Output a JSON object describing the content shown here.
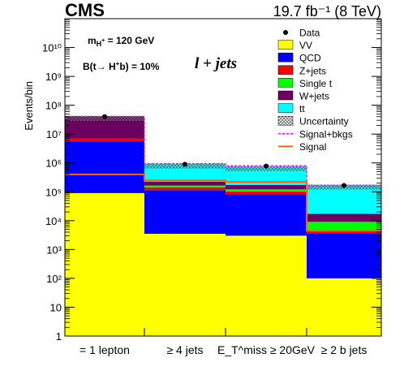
{
  "chart_data": {
    "type": "bar",
    "stacked": true,
    "log_y": true,
    "ylabel": "Events/bin",
    "ylim": [
      1,
      100000000000.0
    ],
    "yticks": [
      "1",
      "10",
      "10²",
      "10³",
      "10⁴",
      "10⁵",
      "10⁶",
      "10⁷",
      "10⁸",
      "10⁹",
      "10¹⁰"
    ],
    "categories": [
      "= 1 lepton",
      "≥ 4 jets",
      "E_T^miss ≥ 20GeV",
      "≥ 2 b jets"
    ],
    "series": [
      {
        "name": "VV",
        "color": "#ffff00",
        "values": [
          90000,
          3500,
          3000,
          100
        ]
      },
      {
        "name": "QCD",
        "color": "#0000ff",
        "values": [
          5500000,
          110000,
          80000,
          3500
        ]
      },
      {
        "name": "Z+jets",
        "color": "#ff0000",
        "values": [
          1500000,
          30000,
          20000,
          800
        ]
      },
      {
        "name": "Single t",
        "color": "#00ff00",
        "values": [
          0,
          22000,
          18000,
          4700
        ]
      },
      {
        "name": "W+jets",
        "color": "#6b005e",
        "values": [
          35000000,
          60000,
          50000,
          8000
        ]
      },
      {
        "name": "tt",
        "color": "#00ffff",
        "values": [
          0,
          720000,
          600000,
          160000
        ]
      }
    ],
    "data_points": [
      40000000,
      900000,
      780000,
      165000
    ],
    "signal": [
      400000,
      250000,
      220000,
      4500
    ],
    "signal_plus_bkg": [
      41000000,
      950000,
      800000,
      160000
    ],
    "legend": {
      "position": "top-right",
      "entries": [
        {
          "label": "Data",
          "kind": "marker"
        },
        {
          "label": "VV",
          "kind": "fill",
          "color": "#ffff00"
        },
        {
          "label": "QCD",
          "kind": "fill",
          "color": "#0000ff"
        },
        {
          "label": "Z+jets",
          "kind": "fill",
          "color": "#ff0000"
        },
        {
          "label": "Single t",
          "kind": "fill",
          "color": "#00ff00"
        },
        {
          "label": "W+jets",
          "kind": "fill",
          "color": "#6b005e"
        },
        {
          "label": "tt",
          "kind": "fill",
          "color": "#00ffff"
        },
        {
          "label": "Uncertainty",
          "kind": "hatch"
        },
        {
          "label": "Signal+bkgs",
          "kind": "dashed",
          "color": "#ff00ff"
        },
        {
          "label": "Signal",
          "kind": "line",
          "color": "#ff6600"
        }
      ]
    },
    "annotations": {
      "experiment": "CMS",
      "lumi": "19.7 fb⁻¹ (8 TeV)",
      "mass": "m_H+ = 120 GeV",
      "branching": "B(t→ H+b) = 10%",
      "channel": "l + jets"
    }
  }
}
